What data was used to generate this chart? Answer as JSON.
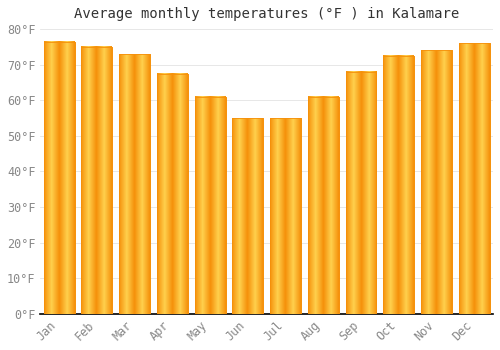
{
  "title": "Average monthly temperatures (°F ) in Kalamare",
  "months": [
    "Jan",
    "Feb",
    "Mar",
    "Apr",
    "May",
    "Jun",
    "Jul",
    "Aug",
    "Sep",
    "Oct",
    "Nov",
    "Dec"
  ],
  "values": [
    76.5,
    75.0,
    73.0,
    67.5,
    61.0,
    55.0,
    55.0,
    61.0,
    68.0,
    72.5,
    74.0,
    76.0
  ],
  "bar_color_center": "#FFD04D",
  "bar_color_edge": "#F5900A",
  "background_color": "#FFFFFF",
  "grid_color": "#DDDDDD",
  "ylim": [
    0,
    80
  ],
  "yticks": [
    0,
    10,
    20,
    30,
    40,
    50,
    60,
    70,
    80
  ],
  "ylabel_suffix": "°F",
  "title_fontsize": 10,
  "tick_fontsize": 8.5,
  "font_family": "monospace",
  "bar_width": 0.82
}
